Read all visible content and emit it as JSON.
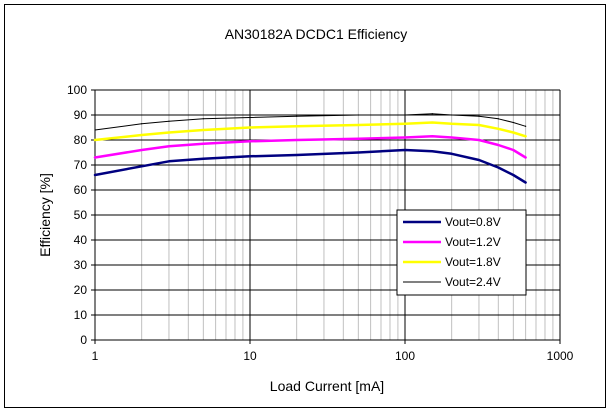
{
  "chart_data": {
    "type": "line",
    "title": "AN30182A DCDC1 Efficiency",
    "xlabel": "Load Current [mA]",
    "ylabel": "Efficiency [%]",
    "xscale": "log",
    "xlim": [
      1,
      1000
    ],
    "ylim": [
      0,
      100
    ],
    "xticks": [
      "1",
      "10",
      "100",
      "1000"
    ],
    "yticks": [
      "0",
      "10",
      "20",
      "30",
      "40",
      "50",
      "60",
      "70",
      "80",
      "90",
      "100"
    ],
    "grid": true,
    "legend": "inside-right",
    "series": [
      {
        "name": "Vout=0.8V",
        "color": "#000080",
        "width": 2.5,
        "x": [
          1,
          2,
          3,
          5,
          10,
          20,
          50,
          100,
          150,
          200,
          300,
          400,
          500,
          600
        ],
        "y": [
          66,
          69.5,
          71.5,
          72.5,
          73.5,
          74,
          75,
          76,
          75.5,
          74.5,
          72,
          69,
          66,
          63
        ]
      },
      {
        "name": "Vout=1.2V",
        "color": "#ff00ff",
        "width": 2.5,
        "x": [
          1,
          2,
          3,
          5,
          10,
          20,
          50,
          100,
          150,
          200,
          300,
          400,
          500,
          600
        ],
        "y": [
          73,
          76,
          77.5,
          78.5,
          79.5,
          80,
          80.5,
          81,
          81.5,
          81,
          80,
          78,
          76,
          73
        ]
      },
      {
        "name": "Vout=1.8V",
        "color": "#ffff00",
        "width": 2.5,
        "x": [
          1,
          2,
          3,
          5,
          10,
          20,
          50,
          100,
          150,
          200,
          300,
          400,
          500,
          600
        ],
        "y": [
          80,
          82,
          83,
          84,
          85,
          85.5,
          86,
          86.5,
          87,
          86.5,
          86,
          84.5,
          83,
          81.5
        ]
      },
      {
        "name": "Vout=2.4V",
        "color": "#000000",
        "width": 1,
        "x": [
          1,
          2,
          3,
          5,
          10,
          20,
          50,
          100,
          150,
          200,
          300,
          400,
          500,
          600
        ],
        "y": [
          84,
          86.5,
          87.5,
          88.5,
          89,
          89.5,
          90,
          90,
          90.5,
          90,
          89.5,
          88.5,
          87,
          85.5
        ]
      }
    ]
  }
}
